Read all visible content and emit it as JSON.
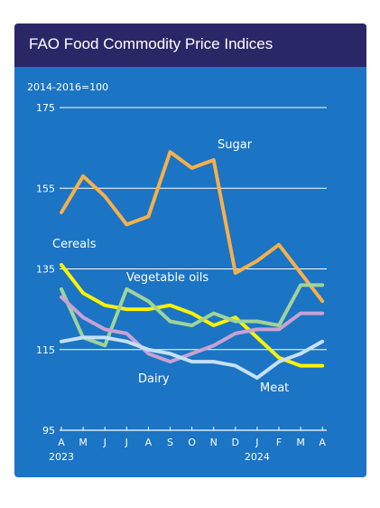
{
  "title": "FAO Food Commodity Price Indices",
  "colors": {
    "panel": "#1b74c4",
    "title_bar": "#2a2766",
    "text": "#ffffff"
  },
  "chart_data": {
    "type": "line",
    "title": "FAO Food Commodity Price Indices",
    "subtitle": "2014-2016=100",
    "categories": [
      "A",
      "M",
      "J",
      "J",
      "A",
      "S",
      "O",
      "N",
      "D",
      "J",
      "F",
      "M",
      "A"
    ],
    "year_labels": [
      {
        "label": "2023",
        "index": 0
      },
      {
        "label": "2024",
        "index": 9
      }
    ],
    "ylim": [
      95,
      175
    ],
    "yticks": [
      95,
      115,
      135,
      155,
      175
    ],
    "grid": true,
    "series": [
      {
        "name": "Sugar",
        "color": "#f7b04a",
        "values": [
          149,
          158,
          153,
          146,
          148,
          164,
          160,
          162,
          134,
          137,
          141,
          134,
          127
        ]
      },
      {
        "name": "Cereals",
        "color": "#fff200",
        "values": [
          136,
          129,
          126,
          125,
          125,
          126,
          124,
          121,
          123,
          118,
          113,
          111,
          111
        ]
      },
      {
        "name": "Vegetable oils",
        "color": "#9ed49a",
        "values": [
          130,
          118,
          116,
          130,
          127,
          122,
          121,
          124,
          122,
          122,
          121,
          131,
          131
        ]
      },
      {
        "name": "Dairy",
        "color": "#c9a2d2",
        "values": [
          128,
          123,
          120,
          119,
          114,
          112,
          114,
          116,
          119,
          120,
          120,
          124,
          124
        ]
      },
      {
        "name": "Meat",
        "color": "#c6e0f5",
        "values": [
          117,
          118,
          118,
          117,
          115,
          114,
          112,
          112,
          111,
          108,
          112,
          114,
          117
        ]
      }
    ],
    "labels": [
      {
        "text": "Sugar",
        "series": "Sugar"
      },
      {
        "text": "Cereals",
        "series": "Cereals"
      },
      {
        "text": "Vegetable oils",
        "series": "Vegetable oils"
      },
      {
        "text": "Dairy",
        "series": "Dairy"
      },
      {
        "text": "Meat",
        "series": "Meat"
      }
    ]
  }
}
